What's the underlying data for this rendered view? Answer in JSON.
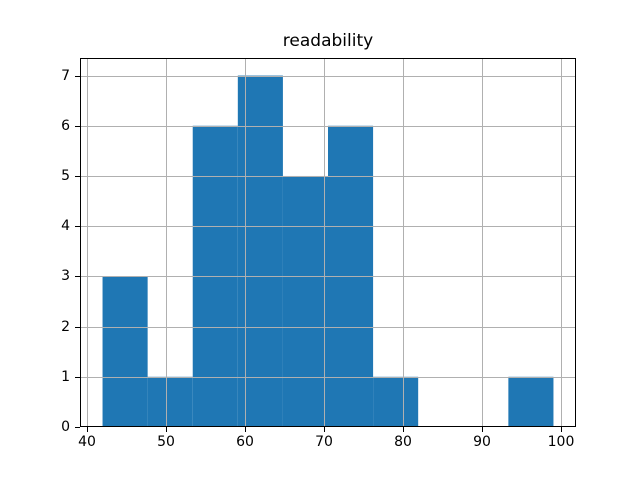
{
  "chart_data": {
    "type": "bar",
    "subtype": "histogram",
    "title": "readability",
    "bin_edges": [
      42.0,
      47.7,
      53.4,
      59.1,
      64.8,
      70.5,
      76.2,
      81.9,
      87.6,
      93.3,
      99.0
    ],
    "counts": [
      3,
      1,
      6,
      7,
      5,
      6,
      1,
      0,
      0,
      1
    ],
    "xticks": [
      40,
      50,
      60,
      70,
      80,
      90,
      100
    ],
    "yticks": [
      0,
      1,
      2,
      3,
      4,
      5,
      6,
      7
    ],
    "xlim": [
      39.15,
      101.85
    ],
    "ylim": [
      0,
      7.35
    ],
    "grid": true,
    "legend_position": "none",
    "colors": {
      "bar": "#1f77b4",
      "grid": "#b0b0b0",
      "spine": "#000000",
      "tick": "#000000",
      "text": "#000000",
      "background": "#ffffff"
    }
  }
}
